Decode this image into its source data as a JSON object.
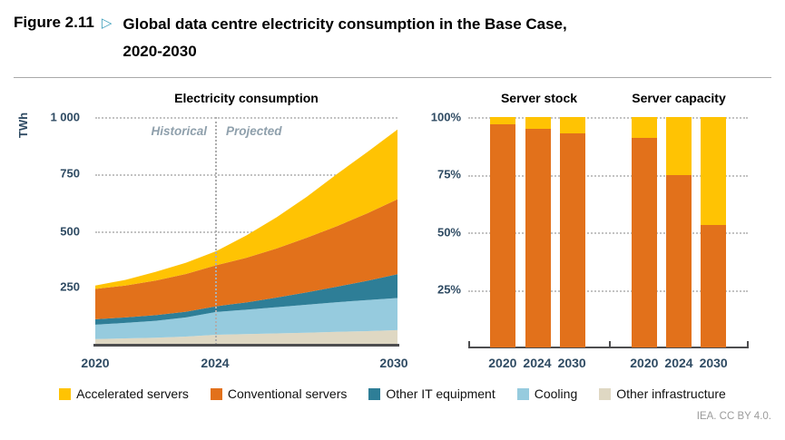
{
  "figure": {
    "label": "Figure 2.11",
    "marker": "▷",
    "title_line1": "Global data centre electricity consumption in the Base Case,",
    "title_line2": "2020-2030",
    "credit": "IEA. CC BY 4.0."
  },
  "colors": {
    "accelerated": "#FFC303",
    "conventional": "#E2711B",
    "other_it": "#2E7E97",
    "cooling": "#96CBDE",
    "other_infra": "#DFD8C3"
  },
  "legend": [
    {
      "key": "accelerated",
      "label": "Accelerated servers"
    },
    {
      "key": "conventional",
      "label": "Conventional servers"
    },
    {
      "key": "other_it",
      "label": "Other IT equipment"
    },
    {
      "key": "cooling",
      "label": "Cooling"
    },
    {
      "key": "other_infra",
      "label": "Other infrastructure"
    }
  ],
  "chart_data": [
    {
      "type": "area",
      "key": "electricity_consumption",
      "title": "Electricity consumption",
      "ylabel": "TWh",
      "ylim": [
        0,
        1000
      ],
      "yticks": [
        "1 000",
        "750",
        "500",
        "250"
      ],
      "x": [
        2020,
        2021,
        2022,
        2023,
        2024,
        2025,
        2026,
        2027,
        2028,
        2029,
        2030
      ],
      "xticks": [
        "2020",
        "2024",
        "2030"
      ],
      "divider_year": 2024,
      "annotations": {
        "historical": "Historical",
        "projected": "Projected"
      },
      "legend_position": "bottom",
      "grid": "dotted-horizontal",
      "series": [
        {
          "key": "other_infra",
          "name": "Other infrastructure",
          "values": [
            25,
            28,
            31,
            36,
            44,
            47,
            50,
            53,
            57,
            60,
            64
          ]
        },
        {
          "key": "cooling",
          "name": "Cooling",
          "values": [
            63,
            68,
            74,
            84,
            100,
            107,
            115,
            123,
            130,
            136,
            141
          ]
        },
        {
          "key": "other_it",
          "name": "Other IT equipment",
          "values": [
            24,
            24,
            25,
            25,
            25,
            32,
            42,
            54,
            68,
            85,
            105
          ]
        },
        {
          "key": "conventional",
          "name": "Conventional servers",
          "values": [
            133,
            140,
            152,
            166,
            180,
            196,
            216,
            240,
            266,
            296,
            329
          ]
        },
        {
          "key": "accelerated",
          "name": "Accelerated servers",
          "values": [
            15,
            25,
            38,
            49,
            62,
            98,
            137,
            180,
            229,
            269,
            306
          ]
        }
      ]
    },
    {
      "type": "stacked-bar-100",
      "key": "server_stock",
      "title": "Server stock",
      "categories": [
        "2020",
        "2024",
        "2030"
      ],
      "yticks": [
        "100%",
        "75%",
        "50%",
        "25%"
      ],
      "ylim": [
        0,
        100
      ],
      "series": [
        {
          "key": "conventional",
          "name": "Conventional servers",
          "values": [
            97,
            95,
            93
          ]
        },
        {
          "key": "accelerated",
          "name": "Accelerated servers",
          "values": [
            3,
            5,
            7
          ]
        }
      ]
    },
    {
      "type": "stacked-bar-100",
      "key": "server_capacity",
      "title": "Server capacity",
      "categories": [
        "2020",
        "2024",
        "2030"
      ],
      "yticks": [
        "100%",
        "75%",
        "50%",
        "25%"
      ],
      "ylim": [
        0,
        100
      ],
      "series": [
        {
          "key": "conventional",
          "name": "Conventional servers",
          "values": [
            91,
            75,
            53
          ]
        },
        {
          "key": "accelerated",
          "name": "Accelerated servers",
          "values": [
            9,
            25,
            47
          ]
        }
      ]
    }
  ]
}
